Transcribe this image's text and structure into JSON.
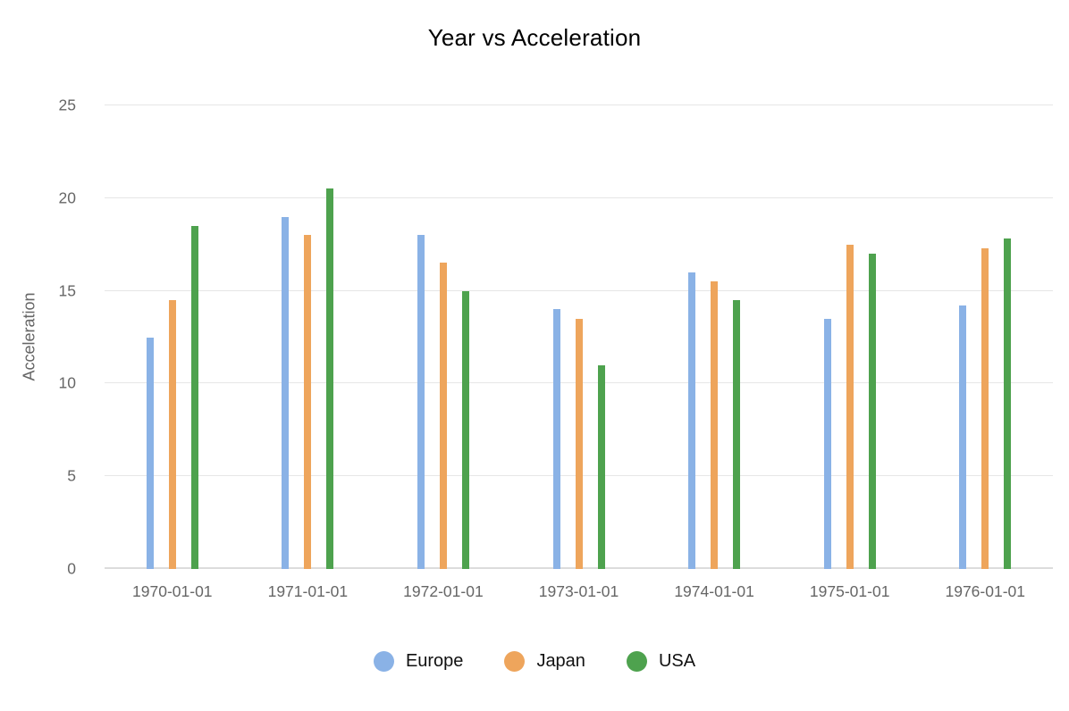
{
  "chart_data": {
    "type": "bar",
    "title": "Year vs Acceleration",
    "xlabel": "",
    "ylabel": "Acceleration",
    "categories": [
      "1970-01-01",
      "1971-01-01",
      "1972-01-01",
      "1973-01-01",
      "1974-01-01",
      "1975-01-01",
      "1976-01-01"
    ],
    "series": [
      {
        "name": "Europe",
        "color": "#8AB2E6",
        "values": [
          12.5,
          19.0,
          18.0,
          14.0,
          16.0,
          13.5,
          14.2
        ]
      },
      {
        "name": "Japan",
        "color": "#EEA55C",
        "values": [
          14.5,
          18.0,
          16.5,
          13.5,
          15.5,
          17.5,
          17.3
        ]
      },
      {
        "name": "USA",
        "color": "#4EA24E",
        "values": [
          18.5,
          20.5,
          15.0,
          11.0,
          14.5,
          17.0,
          17.8
        ]
      }
    ],
    "ylim": [
      0,
      25
    ],
    "yticks": [
      0,
      5,
      10,
      15,
      20,
      25
    ],
    "grid": true,
    "legend_position": "bottom",
    "colors": {
      "gridline": "#e6e6e6",
      "baseline": "#dcdcdc",
      "tick_text": "#666666",
      "title_text": "#000000",
      "legend_text": "#111111"
    }
  }
}
